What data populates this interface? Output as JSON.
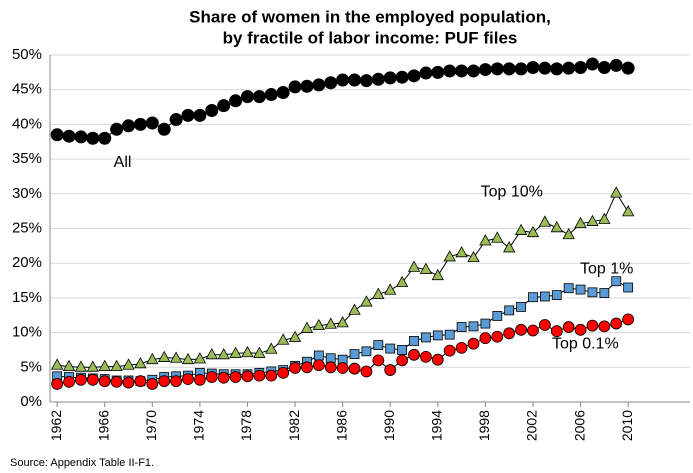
{
  "chart_data": {
    "type": "line",
    "title": [
      "Share of women in the employed population,",
      "by fractile of labor income: PUF files"
    ],
    "source": "Source: Appendix Table II-F1.",
    "x": [
      1962,
      1963,
      1964,
      1965,
      1966,
      1967,
      1968,
      1969,
      1970,
      1971,
      1972,
      1973,
      1974,
      1975,
      1976,
      1977,
      1978,
      1979,
      1980,
      1981,
      1982,
      1983,
      1984,
      1985,
      1986,
      1987,
      1988,
      1989,
      1990,
      1991,
      1992,
      1993,
      1994,
      1995,
      1996,
      1997,
      1998,
      1999,
      2000,
      2001,
      2002,
      2003,
      2004,
      2005,
      2006,
      2007,
      2008,
      2009,
      2010
    ],
    "series": [
      {
        "name": "All",
        "color": "#000000",
        "marker": "circle",
        "values": [
          38.5,
          38.3,
          38.2,
          38.0,
          38.0,
          39.3,
          39.8,
          40.0,
          40.2,
          39.3,
          40.7,
          41.3,
          41.3,
          42.0,
          42.7,
          43.4,
          44.0,
          44.0,
          44.3,
          44.6,
          45.4,
          45.5,
          45.7,
          46.0,
          46.4,
          46.4,
          46.3,
          46.5,
          46.7,
          46.8,
          47.0,
          47.4,
          47.5,
          47.7,
          47.7,
          47.7,
          47.9,
          48.0,
          48.0,
          48.0,
          48.2,
          48.1,
          48.0,
          48.1,
          48.2,
          48.7,
          48.2,
          48.5,
          48.1
        ]
      },
      {
        "name": "Top 10%",
        "color": "#9bbb59",
        "marker": "triangle",
        "values": [
          5.3,
          5.1,
          5.0,
          5.0,
          5.1,
          5.1,
          5.3,
          5.5,
          6.1,
          6.4,
          6.3,
          6.1,
          6.2,
          6.8,
          6.8,
          7.0,
          7.1,
          7.0,
          7.6,
          8.9,
          9.3,
          10.6,
          11.0,
          11.2,
          11.4,
          13.2,
          14.4,
          15.5,
          16.1,
          17.2,
          19.4,
          19.1,
          18.2,
          20.9,
          21.5,
          20.8,
          23.2,
          23.6,
          22.2,
          24.7,
          24.4,
          25.9,
          25.1,
          24.1,
          25.7,
          26.0,
          26.3,
          30.1,
          27.4
        ]
      },
      {
        "name": "Top 1%",
        "color": "#5b9bd5",
        "marker": "square",
        "values": [
          3.7,
          3.6,
          3.5,
          3.4,
          3.3,
          3.1,
          3.1,
          3.0,
          3.2,
          3.6,
          3.7,
          3.8,
          4.2,
          4.1,
          4.0,
          4.0,
          4.0,
          4.2,
          4.4,
          4.6,
          5.2,
          5.8,
          6.7,
          6.3,
          6.1,
          6.9,
          7.3,
          8.2,
          7.7,
          7.5,
          8.8,
          9.3,
          9.6,
          9.7,
          10.8,
          10.9,
          11.3,
          12.4,
          13.2,
          13.7,
          15.1,
          15.2,
          15.4,
          16.4,
          16.2,
          15.8,
          15.7,
          17.4,
          16.5
        ]
      },
      {
        "name": "Top 0.1%",
        "color": "#ff0000",
        "marker": "circle",
        "values": [
          2.6,
          2.9,
          3.2,
          3.2,
          3.0,
          2.9,
          2.8,
          3.0,
          2.6,
          3.0,
          3.0,
          3.3,
          3.2,
          3.6,
          3.5,
          3.6,
          3.7,
          3.8,
          3.8,
          4.2,
          4.9,
          5.0,
          5.3,
          5.0,
          4.9,
          4.8,
          4.4,
          6.0,
          4.6,
          6.0,
          6.8,
          6.5,
          6.1,
          7.4,
          7.8,
          8.4,
          9.2,
          9.4,
          9.9,
          10.4,
          10.3,
          11.1,
          10.2,
          10.8,
          10.4,
          11.0,
          10.9,
          11.3,
          11.9
        ]
      }
    ],
    "xlim": [
      1961.4,
      2015.2
    ],
    "xticks": [
      1962,
      1966,
      1970,
      1974,
      1978,
      1982,
      1986,
      1990,
      1994,
      1998,
      2002,
      2006,
      2010
    ],
    "ylim": [
      0,
      50
    ],
    "yticks": [
      {
        "value": 0,
        "label": "0%"
      },
      {
        "value": 5,
        "label": "5%"
      },
      {
        "value": 10,
        "label": "10%"
      },
      {
        "value": 15,
        "label": "15%"
      },
      {
        "value": 20,
        "label": "20%"
      },
      {
        "value": 25,
        "label": "25%"
      },
      {
        "value": 30,
        "label": "30%"
      },
      {
        "value": 35,
        "label": "35%"
      },
      {
        "value": 40,
        "label": "40%"
      },
      {
        "value": 45,
        "label": "45%"
      },
      {
        "value": 50,
        "label": "50%"
      }
    ],
    "grid": true
  }
}
